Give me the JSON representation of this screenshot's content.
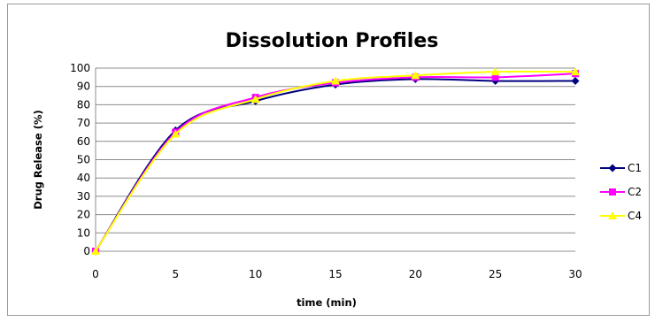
{
  "chart_data": {
    "type": "line",
    "title": "Dissolution Profiles",
    "xlabel": "time (min)",
    "ylabel": "Drug Release (%)",
    "x": [
      0,
      5,
      10,
      15,
      20,
      25,
      30
    ],
    "xticks": [
      "0",
      "5",
      "10",
      "15",
      "20",
      "25",
      "30"
    ],
    "xlim": [
      0,
      30
    ],
    "ylim": [
      0,
      100
    ],
    "yticks": [
      "0",
      "10",
      "20",
      "30",
      "40",
      "50",
      "60",
      "70",
      "80",
      "90",
      "100"
    ],
    "grid": "horizontal",
    "legend_position": "right",
    "series": [
      {
        "name": "C1",
        "color": "#000080",
        "marker": "diamond",
        "values": [
          0,
          66,
          82,
          91,
          94,
          93,
          93
        ]
      },
      {
        "name": "C2",
        "color": "#FF00FF",
        "marker": "square",
        "values": [
          0,
          65,
          84,
          92,
          95,
          95,
          97
        ]
      },
      {
        "name": "C4",
        "color": "#FFFF00",
        "marker": "triangle",
        "values": [
          0,
          64,
          83,
          93,
          96,
          98,
          98
        ]
      }
    ]
  }
}
